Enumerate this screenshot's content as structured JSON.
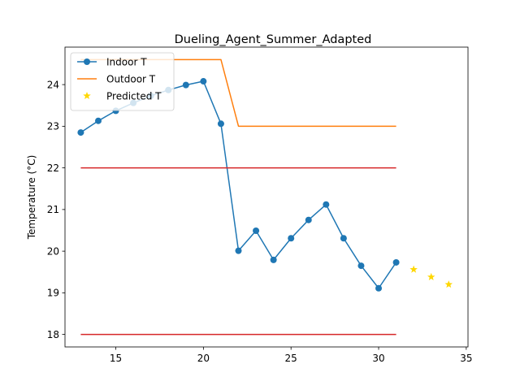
{
  "chart_data": {
    "type": "line",
    "title": "Dueling_Agent_Summer_Adapted",
    "xlabel": "",
    "ylabel": "Temperature (°C)",
    "xlim": [
      12.1,
      35.1
    ],
    "ylim": [
      17.7,
      24.9
    ],
    "xticks": [
      15,
      20,
      25,
      30,
      35
    ],
    "yticks": [
      18,
      19,
      20,
      21,
      22,
      23,
      24
    ],
    "grid": false,
    "legend_position": "top-left",
    "series": [
      {
        "name": "Indoor T",
        "kind": "line-marker",
        "color": "#1f77b4",
        "x": [
          13,
          14,
          15,
          16,
          17,
          18,
          19,
          20,
          21,
          22,
          23,
          24,
          25,
          26,
          27,
          28,
          29,
          30,
          31
        ],
        "y": [
          22.85,
          23.13,
          23.37,
          23.56,
          23.73,
          23.87,
          23.99,
          24.08,
          23.06,
          20.01,
          20.49,
          19.79,
          20.31,
          20.75,
          21.12,
          20.31,
          19.65,
          19.11,
          19.73
        ]
      },
      {
        "name": "Outdoor T",
        "kind": "line",
        "color": "#ff7f0e",
        "x": [
          13,
          14,
          15,
          16,
          17,
          18,
          19,
          20,
          21,
          22,
          23,
          24,
          25,
          26,
          27,
          28,
          29,
          30,
          31
        ],
        "y": [
          24.6,
          24.6,
          24.6,
          24.6,
          24.6,
          24.6,
          24.6,
          24.6,
          24.6,
          23.0,
          23.0,
          23.0,
          23.0,
          23.0,
          23.0,
          23.0,
          23.0,
          23.0,
          23.0
        ]
      },
      {
        "name": "Predicted T",
        "kind": "scatter-star",
        "color": "#ffd700",
        "x": [
          32,
          33,
          34
        ],
        "y": [
          19.56,
          19.38,
          19.2
        ]
      },
      {
        "kind": "hline",
        "color": "#d62728",
        "x": [
          13,
          31
        ],
        "y": [
          22,
          22
        ]
      },
      {
        "kind": "hline",
        "color": "#d62728",
        "x": [
          13,
          31
        ],
        "y": [
          18,
          18
        ]
      }
    ]
  }
}
